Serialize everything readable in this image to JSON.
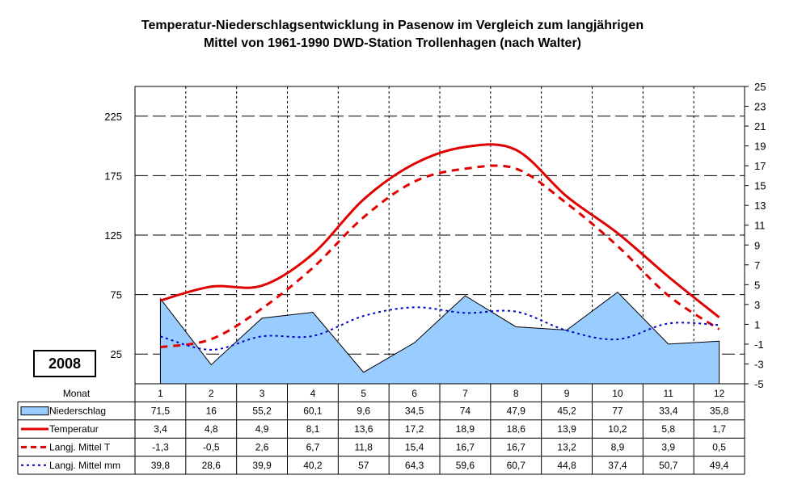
{
  "title_line1": "Temperatur-Niederschlagsentwicklung in Pasenow im Vergleich zum langjährigen",
  "title_line2": "Mittel von 1961-1990 DWD-Station Trollenhagen (nach Walter)",
  "year_label": "2008",
  "table_header": "Monat",
  "chart_data": {
    "type": "bar",
    "categories": [
      "1",
      "2",
      "3",
      "4",
      "5",
      "6",
      "7",
      "8",
      "9",
      "10",
      "11",
      "12"
    ],
    "left_axis": {
      "ticks": [
        "225",
        "175",
        "125",
        "75",
        "25"
      ],
      "ylim": [
        0,
        250
      ]
    },
    "right_axis": {
      "ticks": [
        "25",
        "23",
        "21",
        "19",
        "17",
        "15",
        "13",
        "11",
        "9",
        "7",
        "5",
        "3",
        "1",
        "-1",
        "-3",
        "-5"
      ],
      "ylim": [
        -5,
        25
      ]
    },
    "series": [
      {
        "name": "Niederschlag",
        "kind": "area",
        "axis": "left",
        "color": "#99ccff",
        "values": [
          71.5,
          16,
          55.2,
          60.1,
          9.6,
          34.5,
          74,
          47.9,
          45.2,
          77,
          33.4,
          35.8
        ],
        "labels": [
          "71,5",
          "16",
          "55,2",
          "60,1",
          "9,6",
          "34,5",
          "74",
          "47,9",
          "45,2",
          "77",
          "33,4",
          "35,8"
        ]
      },
      {
        "name": "Temperatur",
        "kind": "line",
        "axis": "right",
        "color": "#e00000",
        "values": [
          3.4,
          4.8,
          4.9,
          8.1,
          13.6,
          17.2,
          18.9,
          18.6,
          13.9,
          10.2,
          5.8,
          1.7
        ],
        "labels": [
          "3,4",
          "4,8",
          "4,9",
          "8,1",
          "13,6",
          "17,2",
          "18,9",
          "18,6",
          "13,9",
          "10,2",
          "5,8",
          "1,7"
        ]
      },
      {
        "name": "Langj. Mittel T",
        "kind": "dashed",
        "axis": "right",
        "color": "#e00000",
        "values": [
          -1.3,
          -0.5,
          2.6,
          6.7,
          11.8,
          15.4,
          16.7,
          16.7,
          13.2,
          8.9,
          3.9,
          0.5
        ],
        "labels": [
          "-1,3",
          "-0,5",
          "2,6",
          "6,7",
          "11,8",
          "15,4",
          "16,7",
          "16,7",
          "13,2",
          "8,9",
          "3,9",
          "0,5"
        ]
      },
      {
        "name": "Langj. Mittel mm",
        "kind": "dotted",
        "axis": "left",
        "color": "#0000cc",
        "values": [
          39.8,
          28.6,
          39.9,
          40.2,
          57,
          64.3,
          59.6,
          60.7,
          44.8,
          37.4,
          50.7,
          49.4
        ],
        "labels": [
          "39,8",
          "28,6",
          "39,9",
          "40,2",
          "57",
          "64,3",
          "59,6",
          "60,7",
          "44,8",
          "37,4",
          "50,7",
          "49,4"
        ]
      }
    ],
    "grid": true,
    "legend_placement": "table-below"
  }
}
